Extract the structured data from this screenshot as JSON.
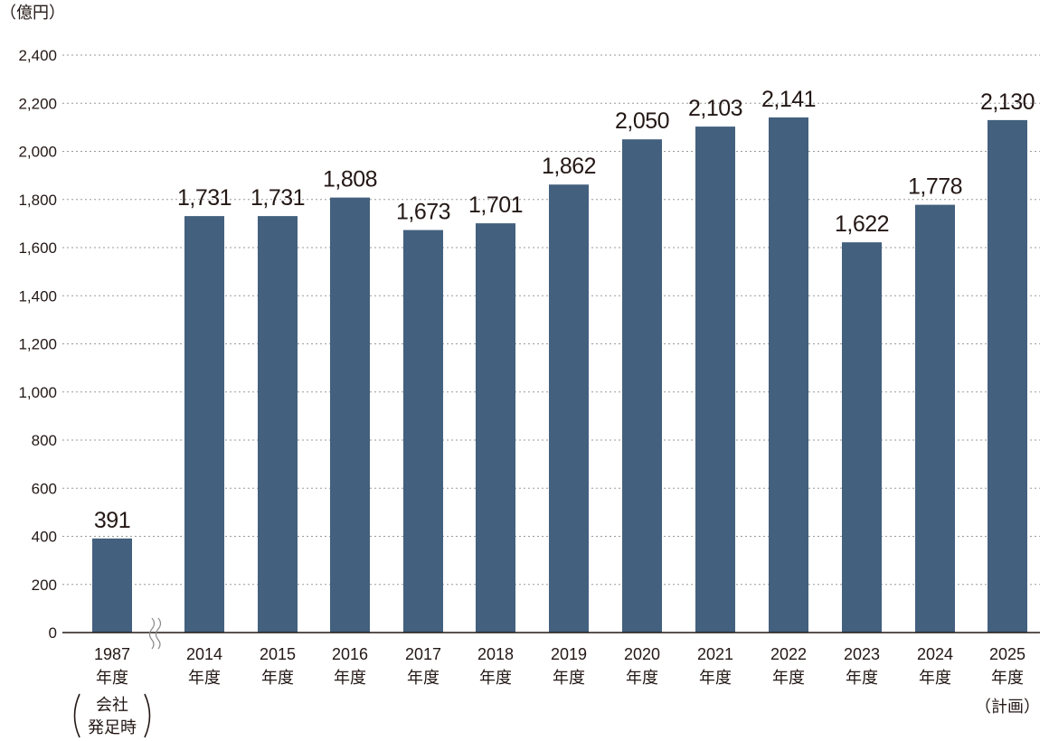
{
  "chart_data": {
    "type": "bar",
    "unit_label": "（億円）",
    "ylim": [
      0,
      2400
    ],
    "y_ticks": [
      "0",
      "200",
      "400",
      "600",
      "800",
      "1,000",
      "1,200",
      "1,400",
      "1,600",
      "1,800",
      "2,000",
      "2,200",
      "2,400"
    ],
    "grid": true,
    "axis_break_between": [
      "1987",
      "2014"
    ],
    "categories": [
      {
        "year": "1987",
        "line2": "年度",
        "note": [
          "会社",
          "発足時"
        ]
      },
      {
        "year": "2014",
        "line2": "年度"
      },
      {
        "year": "2015",
        "line2": "年度"
      },
      {
        "year": "2016",
        "line2": "年度"
      },
      {
        "year": "2017",
        "line2": "年度"
      },
      {
        "year": "2018",
        "line2": "年度"
      },
      {
        "year": "2019",
        "line2": "年度"
      },
      {
        "year": "2020",
        "line2": "年度"
      },
      {
        "year": "2021",
        "line2": "年度"
      },
      {
        "year": "2022",
        "line2": "年度"
      },
      {
        "year": "2023",
        "line2": "年度"
      },
      {
        "year": "2024",
        "line2": "年度"
      },
      {
        "year": "2025",
        "line2": "年度",
        "note": [
          "（計画）"
        ]
      }
    ],
    "values": [
      391,
      1731,
      1731,
      1808,
      1673,
      1701,
      1862,
      2050,
      2103,
      2141,
      1622,
      1778,
      2130
    ],
    "value_labels": [
      "391",
      "1,731",
      "1,731",
      "1,808",
      "1,673",
      "1,701",
      "1,862",
      "2,050",
      "2,103",
      "2,141",
      "1,622",
      "1,778",
      "2,130"
    ],
    "bar_color": "#43607e"
  }
}
